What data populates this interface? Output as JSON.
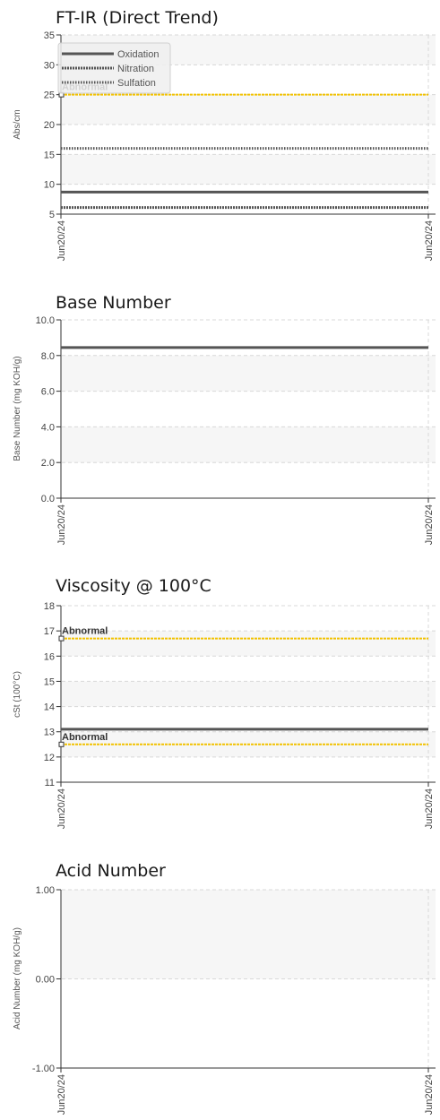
{
  "chart_data": [
    {
      "type": "line",
      "title": "FT-IR (Direct Trend)",
      "ylabel": "Abs/cm",
      "ylim": [
        5,
        35
      ],
      "yticks": [
        "5",
        "10",
        "15",
        "20",
        "25",
        "30",
        "35"
      ],
      "x": [
        "Jun20/24",
        "Jun20/24"
      ],
      "grid": true,
      "legend_position": "top-left",
      "series": [
        {
          "name": "Oxidation",
          "values": [
            8.7,
            8.7
          ],
          "style": "solid",
          "color": "#555555"
        },
        {
          "name": "Nitration",
          "values": [
            6.1,
            6.1
          ],
          "style": "dashed",
          "color": "#555555"
        },
        {
          "name": "Sulfation",
          "values": [
            16.0,
            16.0
          ],
          "style": "dotted",
          "color": "#555555"
        }
      ],
      "limits": [
        {
          "label": "Abnormal",
          "value": 25,
          "color": "#f2c200"
        }
      ]
    },
    {
      "type": "line",
      "title": "Base Number",
      "ylabel": "Base Number (mg KOH/g)",
      "ylim": [
        0,
        10
      ],
      "yticks": [
        "0.0",
        "2.0",
        "4.0",
        "6.0",
        "8.0",
        "10.0"
      ],
      "x": [
        "Jun20/24",
        "Jun20/24"
      ],
      "grid": true,
      "series": [
        {
          "values": [
            8.45,
            8.45
          ],
          "style": "solid",
          "color": "#555555"
        }
      ],
      "limits": []
    },
    {
      "type": "line",
      "title": "Viscosity @ 100°C",
      "ylabel": "cSt (100°C)",
      "ylim": [
        11,
        18
      ],
      "yticks": [
        "11",
        "12",
        "13",
        "14",
        "15",
        "16",
        "17",
        "18"
      ],
      "x": [
        "Jun20/24",
        "Jun20/24"
      ],
      "grid": true,
      "series": [
        {
          "values": [
            13.1,
            13.1
          ],
          "style": "solid",
          "color": "#555555"
        }
      ],
      "limits": [
        {
          "label": "Abnormal",
          "value": 16.7,
          "color": "#f2c200"
        },
        {
          "label": "Abnormal",
          "value": 12.5,
          "color": "#f2c200"
        }
      ]
    },
    {
      "type": "line",
      "title": "Acid Number",
      "ylabel": "Acid Number (mg KOH/g)",
      "ylim": [
        -1,
        1
      ],
      "yticks": [
        "-1.00",
        "0.00",
        "1.00"
      ],
      "x": [
        "Jun20/24",
        "Jun20/24"
      ],
      "grid": true,
      "series": [],
      "limits": []
    }
  ]
}
